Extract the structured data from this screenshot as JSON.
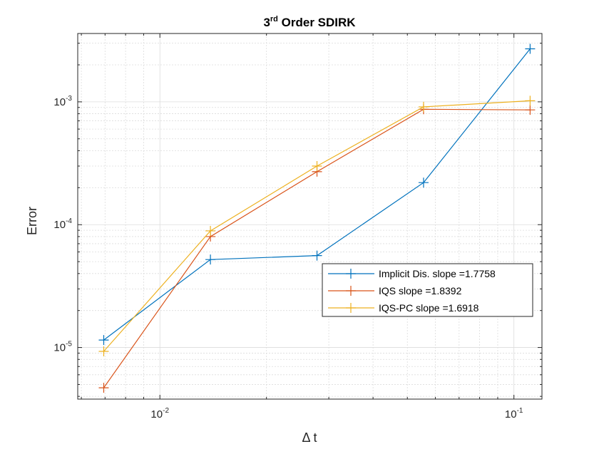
{
  "chart_data": {
    "type": "line",
    "title": {
      "base": "3",
      "superscript": "rd",
      "rest": "Order SDIRK"
    },
    "xlabel": "Δ t",
    "ylabel": "Error",
    "xscale": "log",
    "yscale": "log",
    "xlim": [
      0.00586,
      0.12
    ],
    "ylim": [
      3.8e-06,
      0.0036
    ],
    "grid": true,
    "minor_grid": true,
    "legend_position": "lower-right",
    "x_ticks": [
      {
        "value": 0.01,
        "base": "10",
        "exp": "-2"
      },
      {
        "value": 0.1,
        "base": "10",
        "exp": "-1"
      }
    ],
    "y_ticks": [
      {
        "value": 1e-05,
        "base": "10",
        "exp": "-5"
      },
      {
        "value": 0.0001,
        "base": "10",
        "exp": "-4"
      },
      {
        "value": 0.001,
        "base": "10",
        "exp": "-3"
      }
    ],
    "x": [
      0.00694,
      0.01389,
      0.02778,
      0.05556,
      0.11111
    ],
    "series": [
      {
        "name": "Implicit Dis. slope =1.7758",
        "color": "#0072BD",
        "values": [
          1.15e-05,
          5.2e-05,
          5.6e-05,
          0.00022,
          0.0027
        ]
      },
      {
        "name": "IQS slope =1.8392",
        "color": "#D95319",
        "values": [
          4.7e-06,
          8e-05,
          0.00027,
          0.00087,
          0.00086
        ]
      },
      {
        "name": "IQS-PC slope =1.6918",
        "color": "#EDB120",
        "values": [
          9.3e-06,
          8.9e-05,
          0.0003,
          0.00091,
          0.00102
        ]
      }
    ]
  }
}
